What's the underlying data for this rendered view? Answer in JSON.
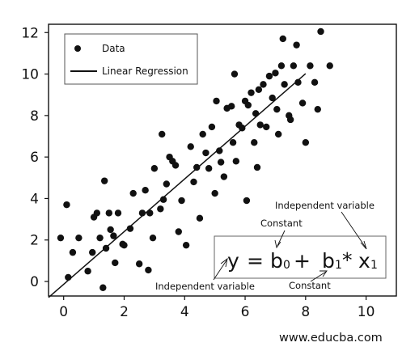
{
  "chart_data": {
    "type": "scatter",
    "xlim": [
      -0.5,
      11
    ],
    "ylim": [
      -0.7,
      12.4
    ],
    "x_ticks": [
      0,
      2,
      4,
      6,
      8,
      10
    ],
    "y_ticks": [
      0,
      2,
      4,
      6,
      8,
      10,
      12
    ],
    "grid": false,
    "legend": {
      "placement": "top-left",
      "entries": [
        {
          "label": "Data",
          "marker": "dot"
        },
        {
          "label": "Linear Regression",
          "marker": "line"
        }
      ]
    },
    "series": [
      {
        "name": "Data",
        "kind": "scatter",
        "color": "#111111",
        "points": [
          [
            -0.1,
            2.1
          ],
          [
            0.1,
            3.7
          ],
          [
            0.15,
            0.2
          ],
          [
            0.3,
            1.4
          ],
          [
            0.5,
            2.1
          ],
          [
            0.8,
            0.5
          ],
          [
            0.95,
            1.4
          ],
          [
            1.0,
            3.1
          ],
          [
            1.1,
            3.3
          ],
          [
            1.2,
            2.1
          ],
          [
            1.3,
            -0.3
          ],
          [
            1.35,
            4.85
          ],
          [
            1.4,
            1.6
          ],
          [
            1.5,
            3.3
          ],
          [
            1.55,
            2.5
          ],
          [
            1.65,
            2.2
          ],
          [
            1.7,
            0.9
          ],
          [
            1.8,
            3.3
          ],
          [
            1.95,
            1.8
          ],
          [
            2.0,
            1.75
          ],
          [
            2.2,
            2.55
          ],
          [
            2.3,
            4.25
          ],
          [
            2.5,
            0.85
          ],
          [
            2.6,
            3.3
          ],
          [
            2.7,
            4.4
          ],
          [
            2.8,
            0.55
          ],
          [
            2.85,
            3.3
          ],
          [
            2.95,
            2.1
          ],
          [
            3.0,
            5.45
          ],
          [
            3.2,
            3.5
          ],
          [
            3.25,
            7.1
          ],
          [
            3.3,
            3.95
          ],
          [
            3.4,
            4.7
          ],
          [
            3.5,
            6.0
          ],
          [
            3.6,
            5.8
          ],
          [
            3.7,
            5.6
          ],
          [
            3.8,
            2.4
          ],
          [
            3.9,
            3.9
          ],
          [
            4.05,
            1.75
          ],
          [
            4.2,
            6.5
          ],
          [
            4.3,
            4.8
          ],
          [
            4.4,
            5.5
          ],
          [
            4.5,
            3.05
          ],
          [
            4.6,
            7.1
          ],
          [
            4.7,
            6.2
          ],
          [
            4.8,
            5.45
          ],
          [
            4.9,
            7.45
          ],
          [
            5.0,
            4.25
          ],
          [
            5.05,
            8.7
          ],
          [
            5.15,
            6.3
          ],
          [
            5.2,
            5.75
          ],
          [
            5.3,
            5.05
          ],
          [
            5.4,
            8.35
          ],
          [
            5.55,
            8.45
          ],
          [
            5.6,
            6.7
          ],
          [
            5.65,
            10.0
          ],
          [
            5.7,
            5.8
          ],
          [
            5.8,
            7.55
          ],
          [
            5.9,
            7.4
          ],
          [
            6.0,
            8.7
          ],
          [
            6.05,
            3.9
          ],
          [
            6.1,
            8.5
          ],
          [
            6.2,
            9.1
          ],
          [
            6.3,
            6.7
          ],
          [
            6.35,
            8.1
          ],
          [
            6.4,
            5.5
          ],
          [
            6.45,
            9.25
          ],
          [
            6.5,
            7.55
          ],
          [
            6.6,
            9.5
          ],
          [
            6.7,
            7.45
          ],
          [
            6.8,
            9.9
          ],
          [
            6.9,
            8.85
          ],
          [
            7.0,
            10.05
          ],
          [
            7.05,
            8.3
          ],
          [
            7.1,
            7.1
          ],
          [
            7.2,
            10.4
          ],
          [
            7.25,
            11.7
          ],
          [
            7.3,
            9.5
          ],
          [
            7.45,
            8.0
          ],
          [
            7.5,
            7.8
          ],
          [
            7.6,
            10.4
          ],
          [
            7.7,
            11.4
          ],
          [
            7.75,
            9.6
          ],
          [
            7.9,
            8.6
          ],
          [
            8.0,
            6.7
          ],
          [
            8.15,
            10.4
          ],
          [
            8.3,
            9.6
          ],
          [
            8.4,
            8.3
          ],
          [
            8.5,
            12.05
          ],
          [
            8.8,
            10.4
          ]
        ]
      },
      {
        "name": "Linear Regression",
        "kind": "line",
        "color": "#111111",
        "points": [
          [
            -0.5,
            -0.77
          ],
          [
            8.0,
            10.02
          ]
        ]
      }
    ]
  },
  "annotations": {
    "equation": {
      "y": "y",
      "equals": "=",
      "b": "b",
      "sub0": "0",
      "plus": "+",
      "b1": "b",
      "sub1": "1",
      "star": "*",
      "x": "x",
      "subx": "1"
    },
    "label_independent_top": "Independent variable",
    "label_constant_top": "Constant",
    "label_independent_bottom": "Independent variable",
    "label_constant_bottom": "Constant"
  },
  "watermark": "www.educba.com"
}
